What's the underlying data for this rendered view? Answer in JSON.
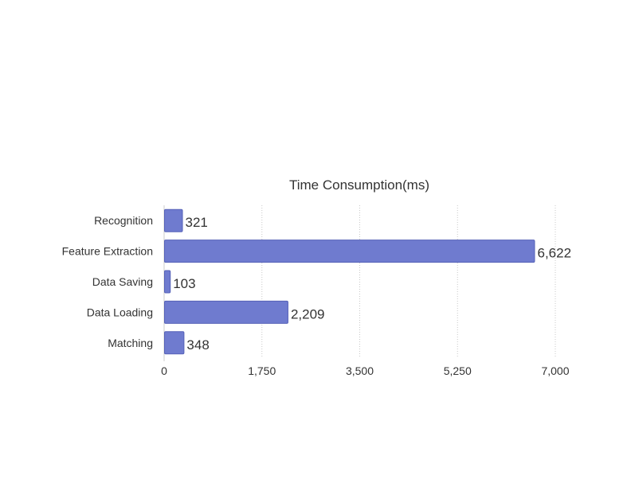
{
  "chart_data": {
    "type": "bar",
    "orientation": "horizontal",
    "title": "Time Consumption(ms)",
    "categories": [
      "Recognition",
      "Feature Extraction",
      "Data Saving",
      "Data Loading",
      "Matching"
    ],
    "values": [
      321,
      6622,
      103,
      2209,
      348
    ],
    "value_labels": [
      "321",
      "6,622",
      "103",
      "2,209",
      "348"
    ],
    "xlim": [
      0,
      7000
    ],
    "x_ticks": [
      0,
      1750,
      3500,
      5250,
      7000
    ],
    "x_tick_labels": [
      "0",
      "1,750",
      "3,500",
      "5,250",
      "7,000"
    ],
    "grid": "vertical-dotted",
    "bar_color": "#6f7bcf",
    "bar_edge_color": "#5561b8"
  }
}
